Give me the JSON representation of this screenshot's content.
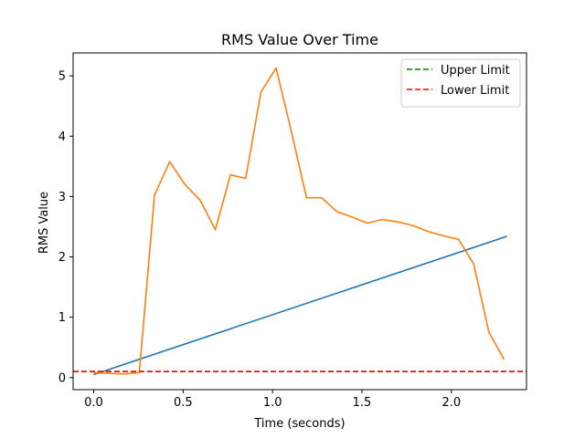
{
  "chart_data": {
    "type": "line",
    "title": "RMS Value Over Time",
    "xlabel": "Time (seconds)",
    "ylabel": "RMS Value",
    "xlim": [
      -0.115,
      2.42
    ],
    "ylim": [
      -0.2,
      5.38
    ],
    "x_ticks": [
      0.0,
      0.5,
      1.0,
      1.5,
      2.0
    ],
    "x_tick_labels": [
      "0.0",
      "0.5",
      "1.0",
      "1.5",
      "2.0"
    ],
    "y_ticks": [
      0,
      1,
      2,
      3,
      4,
      5
    ],
    "y_tick_labels": [
      "0",
      "1",
      "2",
      "3",
      "4",
      "5"
    ],
    "grid": false,
    "legend_position": "top-right",
    "series": [
      {
        "color": "#1f77b4",
        "style": "solid",
        "x": [
          0.0,
          2.31
        ],
        "y": [
          0.05,
          2.34
        ]
      },
      {
        "color": "#ff7f0e",
        "style": "solid",
        "x": [
          0.0,
          0.085,
          0.17,
          0.255,
          0.34,
          0.425,
          0.51,
          0.595,
          0.68,
          0.765,
          0.85,
          0.935,
          1.02,
          1.105,
          1.19,
          1.275,
          1.36,
          1.445,
          1.53,
          1.615,
          1.7,
          1.785,
          1.87,
          1.955,
          2.04,
          2.125,
          2.21,
          2.295
        ],
        "y": [
          0.08,
          0.07,
          0.06,
          0.08,
          3.02,
          3.58,
          3.2,
          2.94,
          2.45,
          3.36,
          3.3,
          4.73,
          5.13,
          4.08,
          2.98,
          2.98,
          2.75,
          2.66,
          2.56,
          2.62,
          2.58,
          2.52,
          2.42,
          2.35,
          2.29,
          1.88,
          0.75,
          0.3
        ]
      },
      {
        "name": "Upper Limit",
        "color": "#008000",
        "style": "dashed",
        "y": 0.1
      },
      {
        "name": "Lower Limit",
        "color": "#ff0000",
        "style": "dashed",
        "y": 0.1
      }
    ]
  }
}
